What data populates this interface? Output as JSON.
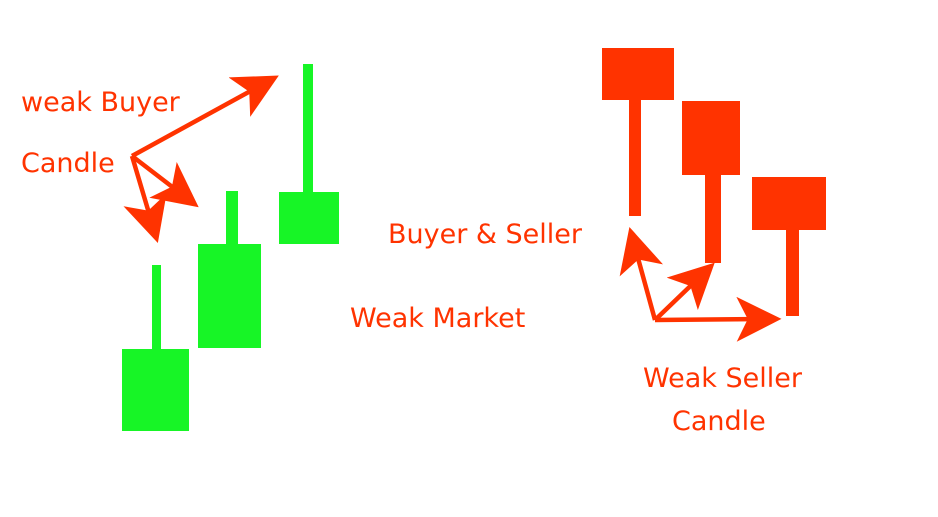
{
  "colors": {
    "buyer": "#17f526",
    "seller": "#ff3300",
    "text": "#ff3300"
  },
  "labels": {
    "weak_buyer_line1": "weak Buyer",
    "weak_buyer_line2": "Candle",
    "buyer_seller": "Buyer & Seller",
    "weak_market": "Weak Market",
    "weak_seller_line1": "Weak Seller",
    "weak_seller_line2": "Candle"
  },
  "candles": {
    "buyer": [
      {
        "name": "buyer-candle-1"
      },
      {
        "name": "buyer-candle-2"
      },
      {
        "name": "buyer-candle-3"
      }
    ],
    "seller": [
      {
        "name": "seller-candle-1"
      },
      {
        "name": "seller-candle-2"
      },
      {
        "name": "seller-candle-3"
      }
    ]
  },
  "arrows": {
    "buyer_count": 3,
    "seller_count": 3
  }
}
